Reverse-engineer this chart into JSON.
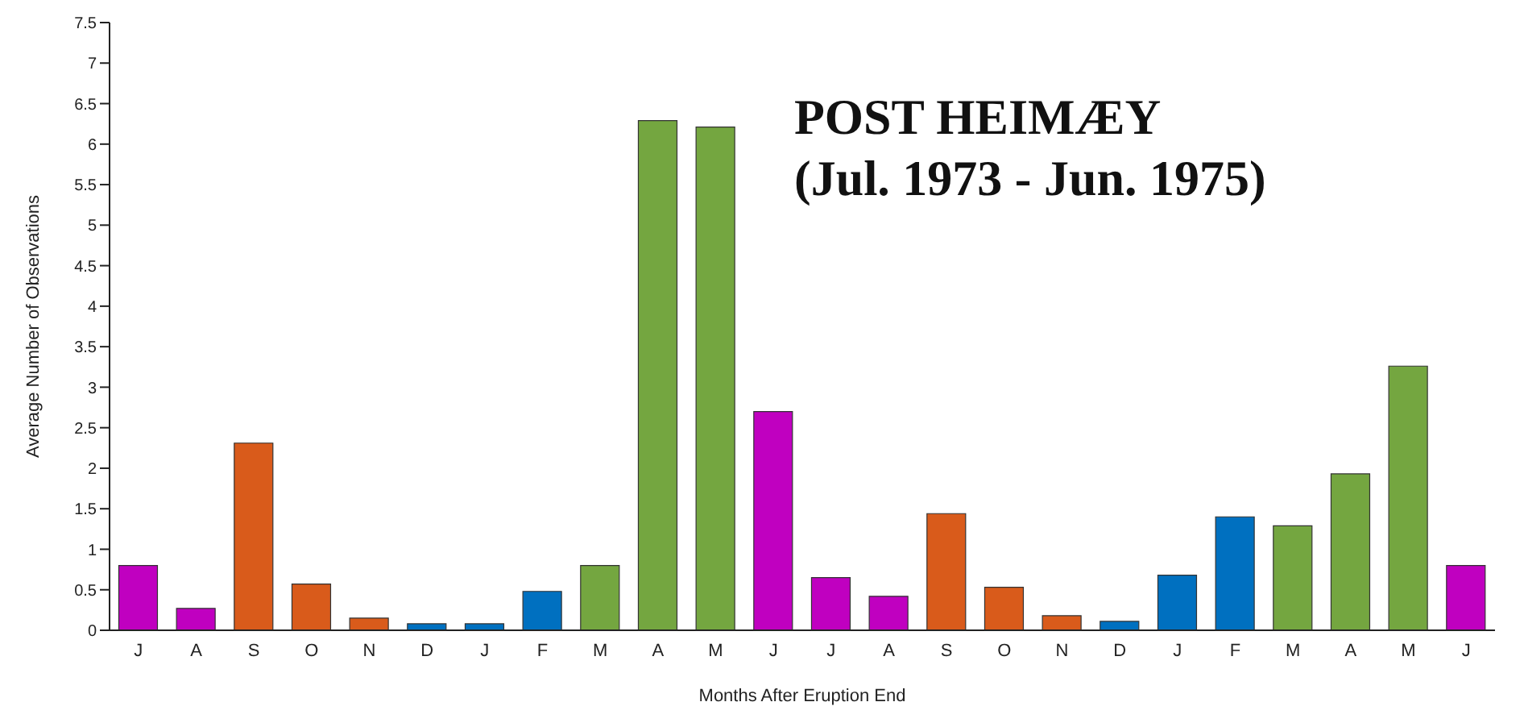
{
  "chart_data": {
    "type": "bar",
    "title": "POST HEIMÆY",
    "subtitle": "(Jul. 1973 - Jun. 1975)",
    "xlabel": "Months After Eruption End",
    "ylabel": "Average Number of Observations",
    "categories": [
      "J",
      "A",
      "S",
      "O",
      "N",
      "D",
      "J",
      "F",
      "M",
      "A",
      "M",
      "J",
      "J",
      "A",
      "S",
      "O",
      "N",
      "D",
      "J",
      "F",
      "M",
      "A",
      "M",
      "J"
    ],
    "values": [
      0.8,
      0.27,
      2.31,
      0.57,
      0.15,
      0.08,
      0.08,
      0.48,
      0.8,
      6.29,
      6.21,
      2.7,
      0.65,
      0.42,
      1.44,
      0.53,
      0.18,
      0.11,
      0.68,
      1.4,
      1.29,
      1.93,
      3.26,
      0.8
    ],
    "colors": [
      "#c000c0",
      "#c000c0",
      "#d95b1b",
      "#d95b1b",
      "#d95b1b",
      "#0070c0",
      "#0070c0",
      "#0070c0",
      "#74a640",
      "#74a640",
      "#74a640",
      "#c000c0",
      "#c000c0",
      "#c000c0",
      "#d95b1b",
      "#d95b1b",
      "#d95b1b",
      "#0070c0",
      "#0070c0",
      "#0070c0",
      "#74a640",
      "#74a640",
      "#74a640",
      "#c000c0"
    ],
    "ylim": [
      0,
      7.5
    ],
    "yticks": [
      0,
      0.5,
      1,
      1.5,
      2,
      2.5,
      3,
      3.5,
      4,
      4.5,
      5,
      5.5,
      6,
      6.5,
      7,
      7.5
    ],
    "grid": false,
    "legend": false
  }
}
